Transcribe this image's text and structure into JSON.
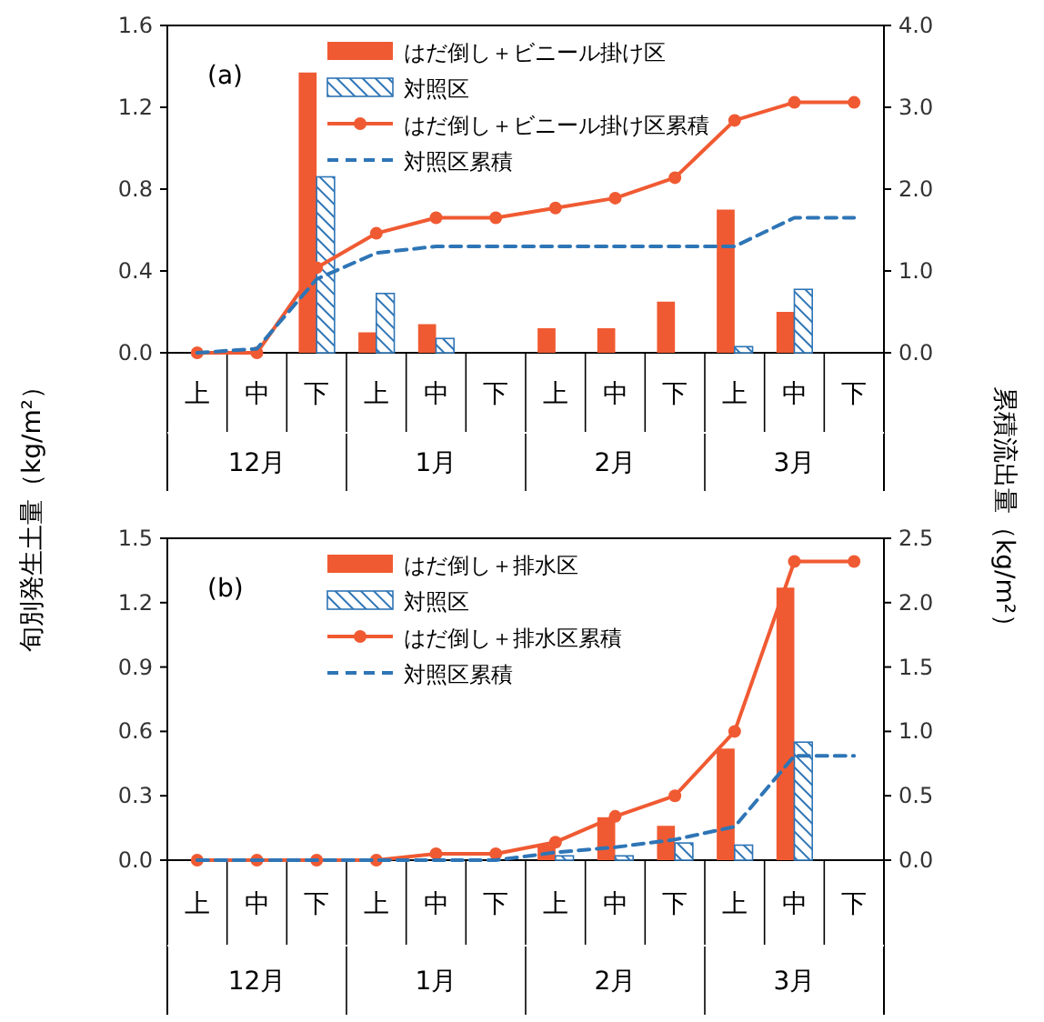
{
  "chart_data": [
    {
      "type": "bar",
      "ylabel": "旬別発生土量（kg/m²）",
      "y2label": "累積流出量（kg/m²）",
      "categories": [
        "上",
        "中",
        "下",
        "上",
        "中",
        "下",
        "上",
        "中",
        "下",
        "上",
        "中",
        "下"
      ],
      "annotations": [
        "(a)",
        "12月",
        "1月",
        "2月",
        "3月"
      ],
      "series": [
        {
          "name": "はだ倒し＋ビニール掛け区",
          "color": "#f05a32",
          "values": [
            0,
            0,
            1.37,
            0.1,
            0.14,
            0,
            0.12,
            0.12,
            0.25,
            0.7,
            0.2,
            0
          ]
        },
        {
          "name": "対照区",
          "color": "#2e75b6",
          "values": [
            0,
            0,
            0.86,
            0.29,
            0.07,
            0,
            0,
            0,
            0,
            0.03,
            0.31,
            0
          ]
        },
        {
          "name": "はだ倒し＋ビニール掛け区累積",
          "type": "line",
          "axis": "y2",
          "color": "#f05a32",
          "marker": "circle",
          "values": [
            0,
            0,
            1.04,
            1.46,
            1.65,
            1.65,
            1.77,
            1.89,
            2.14,
            2.84,
            3.06,
            3.06
          ]
        },
        {
          "name": "対照区累積",
          "type": "line",
          "axis": "y2",
          "color": "#2e75b6",
          "line_style": "dashed",
          "values": [
            0,
            0.05,
            0.9,
            1.22,
            1.3,
            1.3,
            1.3,
            1.3,
            1.3,
            1.3,
            1.65,
            1.65
          ]
        }
      ],
      "ylim": [
        0,
        1.6
      ],
      "yticks": [
        {
          "value": 0,
          "label": "0.0"
        },
        {
          "value": 0.4,
          "label": "0.4"
        },
        {
          "value": 0.8,
          "label": "0.8"
        },
        {
          "value": 1.2,
          "label": "1.2"
        },
        {
          "value": 1.6,
          "label": "1.6"
        }
      ],
      "y2lim": [
        0,
        4
      ],
      "y2ticks": [
        {
          "value": 0,
          "label": "0.0"
        },
        {
          "value": 1,
          "label": "1.0"
        },
        {
          "value": 2,
          "label": "2.0"
        },
        {
          "value": 3,
          "label": "3.0"
        },
        {
          "value": 4,
          "label": "4.0"
        }
      ],
      "legend": "top",
      "grid": false
    },
    {
      "type": "bar",
      "categories": [
        "上",
        "中",
        "下",
        "上",
        "中",
        "下",
        "上",
        "中",
        "下",
        "上",
        "中",
        "下"
      ],
      "annotations": [
        "(b)",
        "12月",
        "1月",
        "2月",
        "3月"
      ],
      "series": [
        {
          "name": "はだ倒し＋排水区",
          "color": "#f05a32",
          "values": [
            0,
            0,
            0,
            0,
            0,
            0,
            0.07,
            0.2,
            0.16,
            0.52,
            1.27,
            0
          ]
        },
        {
          "name": "対照区",
          "color": "#2e75b6",
          "values": [
            0,
            0,
            0,
            0,
            0,
            0,
            0.02,
            0.02,
            0.08,
            0.07,
            0.55,
            0
          ]
        },
        {
          "name": "はだ倒し＋排水区累積",
          "type": "line",
          "axis": "y2",
          "color": "#f05a32",
          "marker": "circle",
          "values": [
            0,
            0,
            0,
            0,
            0.05,
            0.05,
            0.14,
            0.34,
            0.5,
            1.0,
            2.32,
            2.32
          ]
        },
        {
          "name": "対照区累積",
          "type": "line",
          "axis": "y2",
          "color": "#2e75b6",
          "line_style": "dashed",
          "values": [
            0,
            0,
            0,
            0,
            0,
            0,
            0.06,
            0.1,
            0.16,
            0.26,
            0.81,
            0.81
          ]
        }
      ],
      "ylim": [
        0,
        1.5
      ],
      "yticks": [
        {
          "value": 0,
          "label": "0.0"
        },
        {
          "value": 0.3,
          "label": "0.3"
        },
        {
          "value": 0.6,
          "label": "0.6"
        },
        {
          "value": 0.9,
          "label": "0.9"
        },
        {
          "value": 1.2,
          "label": "1.2"
        },
        {
          "value": 1.5,
          "label": "1.5"
        }
      ],
      "y2lim": [
        0,
        2.5
      ],
      "y2ticks": [
        {
          "value": 0,
          "label": "0.0"
        },
        {
          "value": 0.5,
          "label": "0.5"
        },
        {
          "value": 1,
          "label": "1.0"
        },
        {
          "value": 1.5,
          "label": "1.5"
        },
        {
          "value": 2,
          "label": "2.0"
        },
        {
          "value": 2.5,
          "label": "2.5"
        }
      ],
      "legend": "top",
      "grid": false
    }
  ]
}
